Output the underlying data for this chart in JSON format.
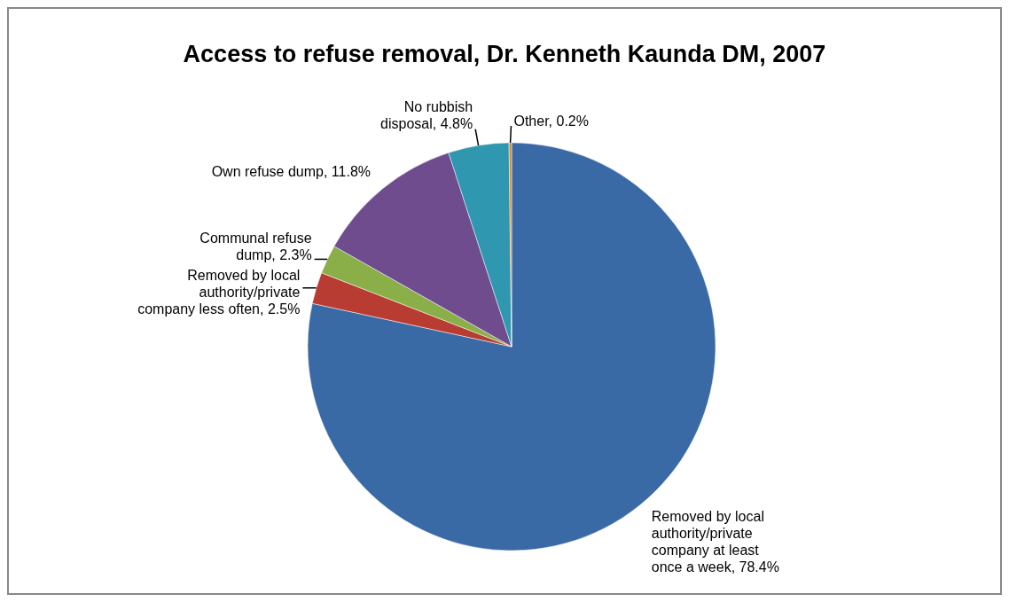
{
  "chart_data": {
    "type": "pie",
    "title": "Access to refuse removal, Dr. Kenneth Kaunda DM, 2007",
    "categories": [
      "Removed by local authority/private company at least once a week",
      "Removed by local authority/private company less often",
      "Communal refuse dump",
      "Own refuse dump",
      "No rubbish disposal",
      "Other"
    ],
    "values": [
      78.4,
      2.5,
      2.3,
      11.8,
      4.8,
      0.2
    ],
    "value_labels": [
      ", 78.4%",
      ", 2.5%",
      ", 2.3%",
      ", 11.8%",
      ", 4.8%",
      ", 0.2%"
    ],
    "colors": [
      "#3a6aa5",
      "#b83c32",
      "#8aae48",
      "#6e4c8e",
      "#3097b0",
      "#e0862b"
    ]
  }
}
